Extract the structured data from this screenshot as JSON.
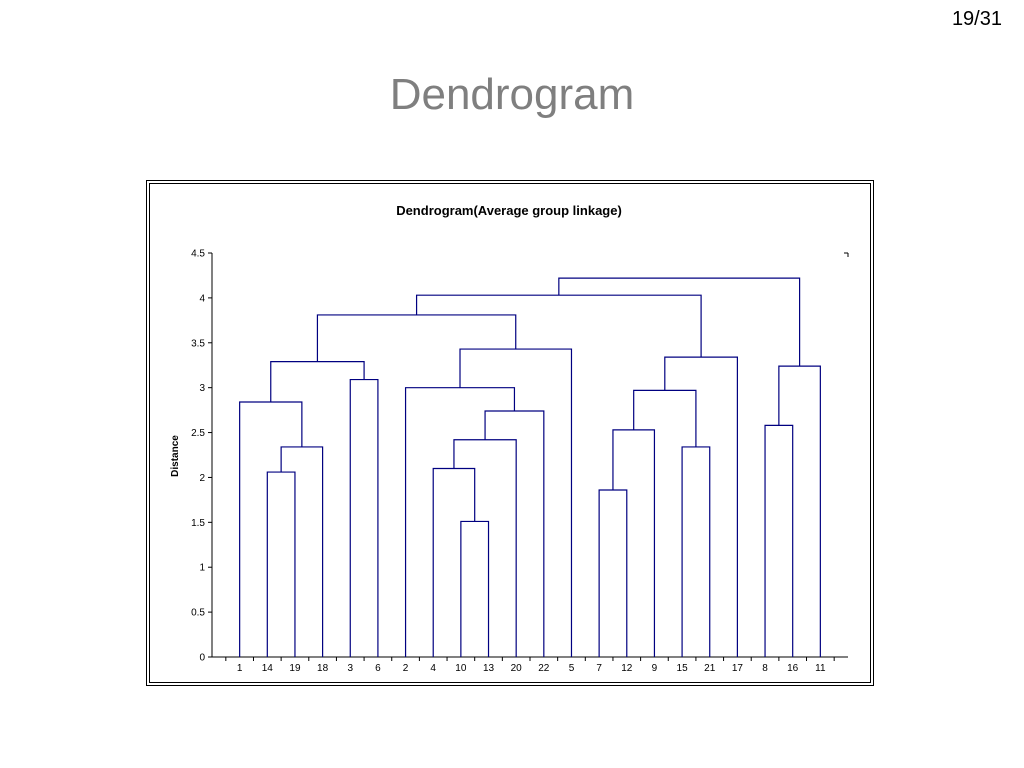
{
  "slide": {
    "page_number": "19/31",
    "title": "Dendrogram"
  },
  "chart_data": {
    "type": "dendrogram",
    "title": "Dendrogram(Average group linkage)",
    "xlabel": "",
    "ylabel": "Distance",
    "ylim": [
      0,
      4.5
    ],
    "yticks": [
      0,
      0.5,
      1,
      1.5,
      2,
      2.5,
      3,
      3.5,
      4,
      4.5
    ],
    "ytick_labels": [
      "0",
      "0.5",
      "1",
      "1.5",
      "2",
      "2.5",
      "3",
      "3.5",
      "4",
      "4.5"
    ],
    "leaves": [
      "1",
      "14",
      "19",
      "18",
      "3",
      "6",
      "2",
      "4",
      "10",
      "13",
      "20",
      "22",
      "5",
      "7",
      "12",
      "9",
      "15",
      "21",
      "17",
      "8",
      "16",
      "11"
    ],
    "merges": [
      {
        "left": "13",
        "right": "10",
        "height": 1.51
      },
      {
        "left": "7",
        "right": "12",
        "height": 1.86
      },
      {
        "left": "14",
        "right": "19",
        "height": 2.06
      },
      {
        "left": "4",
        "right": "C0",
        "height": 2.1
      },
      {
        "left": "C2",
        "right": "18",
        "height": 2.34
      },
      {
        "left": "15",
        "right": "21",
        "height": 2.34
      },
      {
        "left": "C3",
        "right": "20",
        "height": 2.42
      },
      {
        "left": "C1",
        "right": "9",
        "height": 2.53
      },
      {
        "left": "8",
        "right": "16",
        "height": 2.58
      },
      {
        "left": "C6",
        "right": "22",
        "height": 2.74
      },
      {
        "left": "1",
        "right": "C4",
        "height": 2.84
      },
      {
        "left": "C7",
        "right": "C5",
        "height": 2.97
      },
      {
        "left": "2",
        "right": "C9",
        "height": 3.0
      },
      {
        "left": "3",
        "right": "6",
        "height": 3.09
      },
      {
        "left": "C8",
        "right": "11",
        "height": 3.24
      },
      {
        "left": "C10",
        "right": "C13",
        "height": 3.29
      },
      {
        "left": "C11",
        "right": "17",
        "height": 3.34
      },
      {
        "left": "C12",
        "right": "5",
        "height": 3.43
      },
      {
        "left": "C15",
        "right": "C17",
        "height": 3.81
      },
      {
        "left": "C18",
        "right": "C16",
        "height": 4.03
      },
      {
        "left": "C19",
        "right": "C14",
        "height": 4.22
      }
    ],
    "line_color": "#000080",
    "grid": false
  }
}
